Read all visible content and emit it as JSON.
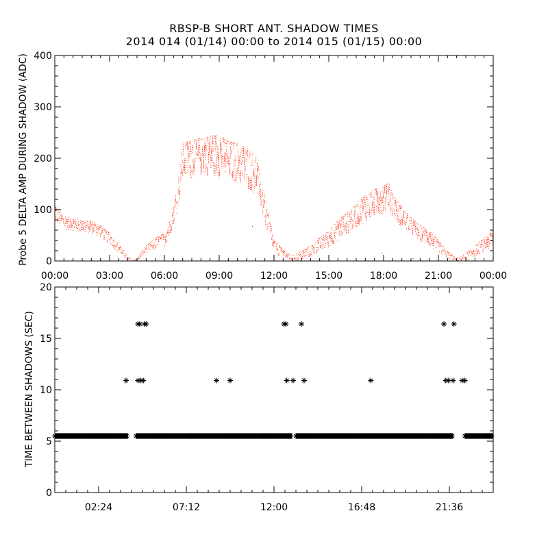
{
  "title": "RBSP-B SHORT ANT. SHADOW TIMES",
  "subtitle": "2014 014 (01/14) 00:00 to 2014 015 (01/15) 00:00",
  "colors": {
    "series_top": "#ff2200",
    "series_bottom": "#000000",
    "axis": "#000000"
  },
  "chart_data": [
    {
      "type": "scatter",
      "title": "",
      "xlabel": "",
      "ylabel": "Probe 5 DELTA AMP DURING SHADOW (ADC)",
      "xlim": [
        0,
        24
      ],
      "ylim": [
        0,
        400
      ],
      "yticks": [
        0,
        100,
        200,
        300,
        400
      ],
      "yticklabels": [
        "0",
        "100",
        "200",
        "300",
        "400"
      ],
      "xticks": [
        0,
        3,
        6,
        9,
        12,
        15,
        18,
        21,
        24
      ],
      "xticklabels": [
        "00:00",
        "03:00",
        "06:00",
        "09:00",
        "12:00",
        "15:00",
        "18:00",
        "21:00",
        "00:00"
      ],
      "envelope": {
        "name": "delta amp",
        "x": [
          0.0,
          0.5,
          1.0,
          1.5,
          2.0,
          2.5,
          3.0,
          3.5,
          4.0,
          4.3,
          4.5,
          5.0,
          5.5,
          6.0,
          6.3,
          6.7,
          7.0,
          7.5,
          8.0,
          8.5,
          9.0,
          9.5,
          10.0,
          10.5,
          11.0,
          11.3,
          11.7,
          12.0,
          12.5,
          13.0,
          13.5,
          14.0,
          14.5,
          15.0,
          15.5,
          16.0,
          16.5,
          17.0,
          17.5,
          18.0,
          18.3,
          18.5,
          19.0,
          19.5,
          20.0,
          20.5,
          21.0,
          21.5,
          22.0,
          22.5,
          23.0,
          23.5,
          24.0
        ],
        "upper": [
          110,
          88,
          82,
          80,
          78,
          70,
          55,
          35,
          8,
          2,
          5,
          30,
          45,
          55,
          80,
          140,
          230,
          235,
          240,
          245,
          245,
          235,
          230,
          220,
          205,
          160,
          95,
          40,
          25,
          10,
          20,
          30,
          45,
          60,
          80,
          95,
          110,
          130,
          140,
          145,
          155,
          130,
          105,
          85,
          70,
          60,
          40,
          20,
          5,
          15,
          30,
          45,
          60
        ],
        "lower": [
          75,
          62,
          58,
          55,
          52,
          45,
          32,
          15,
          0,
          0,
          0,
          15,
          22,
          28,
          48,
          95,
          155,
          160,
          165,
          165,
          162,
          158,
          150,
          140,
          130,
          100,
          45,
          15,
          5,
          0,
          0,
          8,
          18,
          25,
          40,
          52,
          65,
          75,
          85,
          92,
          98,
          85,
          65,
          50,
          38,
          28,
          15,
          5,
          0,
          0,
          8,
          18,
          25
        ]
      }
    },
    {
      "type": "scatter",
      "title": "",
      "xlabel": "",
      "ylabel": "TIME BETWEEN SHADOWS (SEC)",
      "xlim": [
        0,
        24
      ],
      "ylim": [
        0,
        20
      ],
      "yticks": [
        0,
        5,
        10,
        15,
        20
      ],
      "yticklabels": [
        "0",
        "5",
        "10",
        "15",
        "20"
      ],
      "xticks": [
        2.4,
        7.2,
        12.0,
        16.8,
        21.6
      ],
      "xticklabels": [
        "02:24",
        "07:12",
        "12:00",
        "16:48",
        "21:36"
      ],
      "baseline": {
        "name": "regular spacing",
        "y": 5.5,
        "segments": [
          [
            0.0,
            4.0
          ],
          [
            4.45,
            13.0
          ],
          [
            13.2,
            21.8
          ],
          [
            22.45,
            24.0
          ]
        ]
      },
      "points": {
        "name": "gaps",
        "x": [
          3.9,
          4.55,
          4.7,
          4.85,
          8.85,
          9.6,
          12.7,
          13.05,
          13.65,
          17.3,
          21.4,
          21.55,
          21.8,
          22.3,
          22.45,
          4.55,
          4.65,
          4.9,
          5.0,
          12.55,
          12.65,
          13.5,
          21.3,
          21.85
        ],
        "y": [
          10.9,
          10.9,
          10.9,
          10.9,
          10.9,
          10.9,
          10.9,
          10.9,
          10.9,
          10.9,
          10.9,
          10.9,
          10.9,
          10.9,
          10.9,
          16.4,
          16.4,
          16.4,
          16.4,
          16.4,
          16.4,
          16.4,
          16.4,
          16.4
        ]
      }
    }
  ]
}
